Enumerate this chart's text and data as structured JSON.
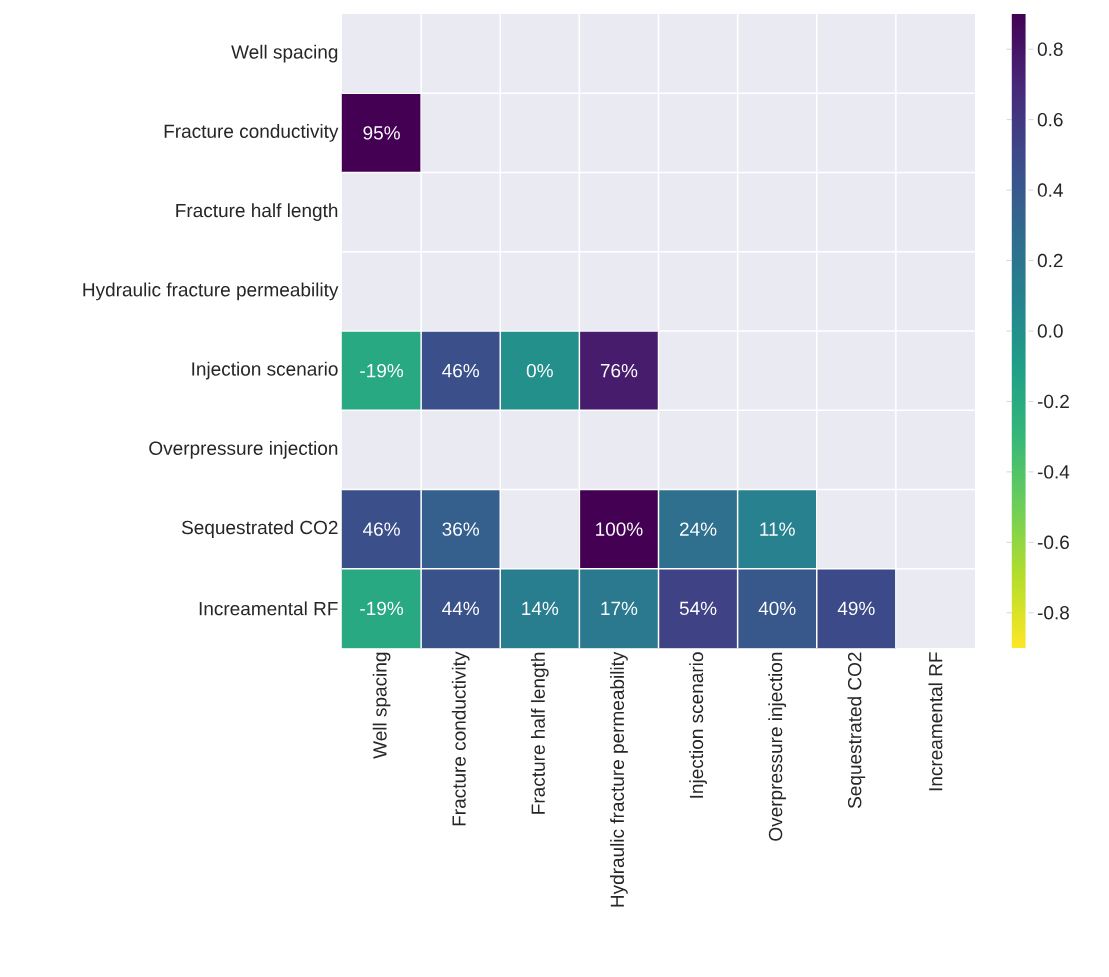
{
  "chart_data": {
    "type": "heatmap",
    "categories": [
      "Well spacing",
      "Fracture conductivity",
      "Fracture half length",
      "Hydraulic fracture permeability",
      "Injection scenario",
      "Overpressure injection",
      "Sequestrated CO2",
      "Increamental RF"
    ],
    "y_categories": [
      "Well spacing",
      "Fracture conductivity",
      "Fracture half length",
      "Hydraulic fracture permeability",
      "Injection scenario",
      "Overpressure injection",
      "Sequestrated CO2",
      "Increamental RF"
    ],
    "cells": [
      [
        null,
        null,
        null,
        null,
        null,
        null,
        null,
        null
      ],
      [
        0.95,
        null,
        null,
        null,
        null,
        null,
        null,
        null
      ],
      [
        null,
        null,
        null,
        null,
        null,
        null,
        null,
        null
      ],
      [
        null,
        null,
        null,
        null,
        null,
        null,
        null,
        null
      ],
      [
        -0.19,
        0.46,
        0,
        0.76,
        null,
        null,
        null,
        null
      ],
      [
        null,
        null,
        null,
        null,
        null,
        null,
        null,
        null
      ],
      [
        0.46,
        0.36,
        null,
        1.0,
        0.24,
        0.11,
        null,
        null
      ],
      [
        -0.19,
        0.44,
        0.14,
        0.17,
        0.54,
        0.4,
        0.49,
        null
      ]
    ],
    "cell_labels": [
      [
        null,
        null,
        null,
        null,
        null,
        null,
        null,
        null
      ],
      [
        "95%",
        null,
        null,
        null,
        null,
        null,
        null,
        null
      ],
      [
        null,
        null,
        null,
        null,
        null,
        null,
        null,
        null
      ],
      [
        null,
        null,
        null,
        null,
        null,
        null,
        null,
        null
      ],
      [
        "-19%",
        "46%",
        "0%",
        "76%",
        null,
        null,
        null,
        null
      ],
      [
        null,
        null,
        null,
        null,
        null,
        null,
        null,
        null
      ],
      [
        "46%",
        "36%",
        null,
        "100%",
        "24%",
        "11%",
        null,
        null
      ],
      [
        "-19%",
        "44%",
        "14%",
        "17%",
        "54%",
        "40%",
        "49%",
        null
      ]
    ],
    "clim": [
      -0.9,
      0.9
    ],
    "cticks": [
      -0.8,
      -0.6,
      -0.4,
      -0.2,
      {
        "value": 0,
        "label": "0.0"
      },
      0.2,
      0.4,
      0.6,
      0.8
    ]
  }
}
